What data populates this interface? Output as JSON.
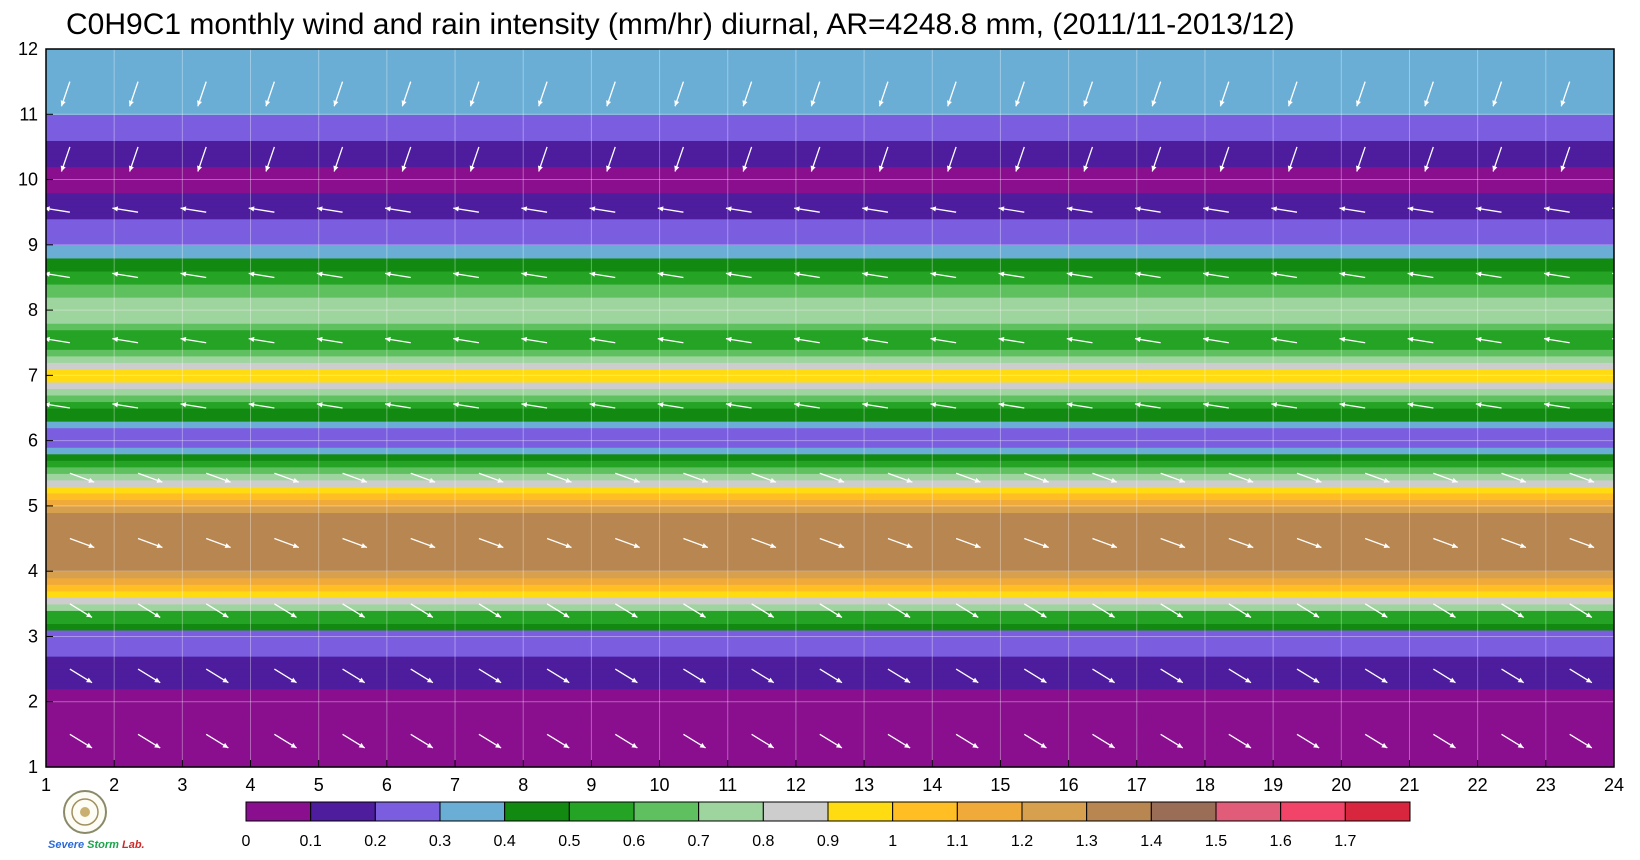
{
  "chart_data": {
    "type": "heatmap",
    "title": "C0H9C1 monthly wind and rain intensity (mm/hr) diurnal, AR=4248.8 mm, (2011/11-2013/12)",
    "xlabel": "",
    "ylabel": "",
    "xlim": [
      1,
      24
    ],
    "ylim": [
      1,
      12
    ],
    "x_ticks": [
      "1",
      "2",
      "3",
      "4",
      "5",
      "6",
      "7",
      "8",
      "9",
      "10",
      "11",
      "12",
      "13",
      "14",
      "15",
      "16",
      "17",
      "18",
      "19",
      "20",
      "21",
      "22",
      "23",
      "24"
    ],
    "y_ticks": [
      "1",
      "2",
      "3",
      "4",
      "5",
      "6",
      "7",
      "8",
      "9",
      "10",
      "11",
      "12"
    ],
    "grid": true,
    "overlay": "wind vectors (white arrows)",
    "colorbar": {
      "placement": "bottom",
      "labels": [
        "0",
        "0.1",
        "0.2",
        "0.3",
        "0.4",
        "0.5",
        "0.6",
        "0.7",
        "0.8",
        "0.9",
        "1",
        "1.1",
        "1.2",
        "1.3",
        "1.4",
        "1.5",
        "1.6",
        "1.7"
      ],
      "colors": [
        "#8a0f8f",
        "#4d1d9e",
        "#7b5ee0",
        "#6aaed6",
        "#128a12",
        "#25a325",
        "#5ec05e",
        "#9ed49e",
        "#cdcdcd",
        "#ffdb12",
        "#ffbf24",
        "#f0aa3a",
        "#d6a04e",
        "#b88650",
        "#9a6d57",
        "#e05c78",
        "#f24468",
        "#d9263f"
      ]
    },
    "z_profile_by_month": [
      {
        "month": 1,
        "value": 0.05
      },
      {
        "month": 2,
        "value": 0.05
      },
      {
        "month": 3,
        "value": 0.25
      },
      {
        "month": 3.5,
        "value": 0.75
      },
      {
        "month": 4,
        "value": 1.3
      },
      {
        "month": 4.8,
        "value": 1.4
      },
      {
        "month": 5.5,
        "value": 0.75
      },
      {
        "month": 6,
        "value": 0.2
      },
      {
        "month": 6.5,
        "value": 0.5
      },
      {
        "month": 7,
        "value": 0.95
      },
      {
        "month": 7.5,
        "value": 0.5
      },
      {
        "month": 8,
        "value": 0.8
      },
      {
        "month": 9,
        "value": 0.3
      },
      {
        "month": 10,
        "value": 0.05
      },
      {
        "month": 11,
        "value": 0.3
      },
      {
        "month": 12,
        "value": 0.3
      }
    ],
    "logo": {
      "name": "storm-lab-logo",
      "text": "Severe Storm Lab."
    }
  }
}
